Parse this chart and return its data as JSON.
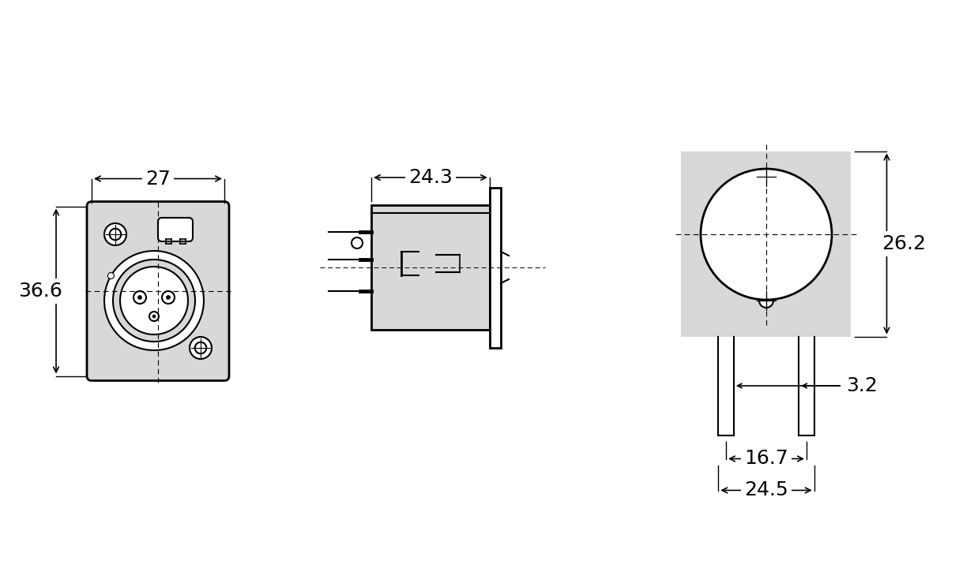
{
  "bg_color": "#ffffff",
  "line_color": "#000000",
  "fill_color": "#d8d8d8",
  "dim_fontsize": 18,
  "lw_main": 1.5,
  "lw_thick": 2.0
}
